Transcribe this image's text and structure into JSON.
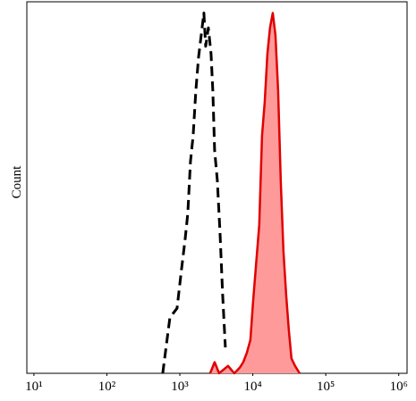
{
  "chart_data": {
    "type": "histogram-overlay",
    "ylabel": "Count",
    "xscale": "log",
    "xlim": [
      8,
      1300000
    ],
    "ylim": [
      0,
      100
    ],
    "xticks": [
      {
        "value": 10,
        "label": "10¹"
      },
      {
        "value": 100,
        "label": "10²"
      },
      {
        "value": 1000,
        "label": "10³"
      },
      {
        "value": 10000,
        "label": "10⁴"
      },
      {
        "value": 100000,
        "label": "10⁵"
      },
      {
        "value": 1000000,
        "label": "10⁶"
      }
    ],
    "series": [
      {
        "color": "#000000",
        "dashed": true,
        "filled": false,
        "x": [
          583,
          731,
          916,
          1055,
          1180,
          1285,
          1400,
          1521,
          1656,
          1803,
          1963,
          2135,
          2259,
          2460,
          2679,
          2831,
          2999,
          3260,
          3548,
          3864,
          4207
        ],
        "y": [
          0,
          15,
          17.5,
          28,
          36,
          43,
          57,
          64,
          76,
          85,
          91,
          97,
          88,
          93,
          86,
          76,
          60,
          52,
          38,
          21,
          7
        ]
      },
      {
        "color": "#e00000",
        "dashed": false,
        "filled": true,
        "fill_color": "#ff9a9a",
        "x": [
          2602,
          2999,
          3451,
          4571,
          5572,
          6607,
          7396,
          8279,
          9268,
          10070,
          10965,
          12274,
          13366,
          14555,
          15849,
          17219,
          18750,
          20417,
          22233,
          24155,
          26303,
          28642,
          31189,
          33884,
          37931,
          43752
        ],
        "y": [
          0,
          3,
          0,
          2,
          0,
          1.5,
          3,
          5.5,
          9,
          19,
          28,
          40,
          64,
          73,
          86,
          93,
          97,
          91,
          76,
          52,
          33,
          21,
          11.5,
          4,
          2,
          0
        ]
      }
    ]
  }
}
